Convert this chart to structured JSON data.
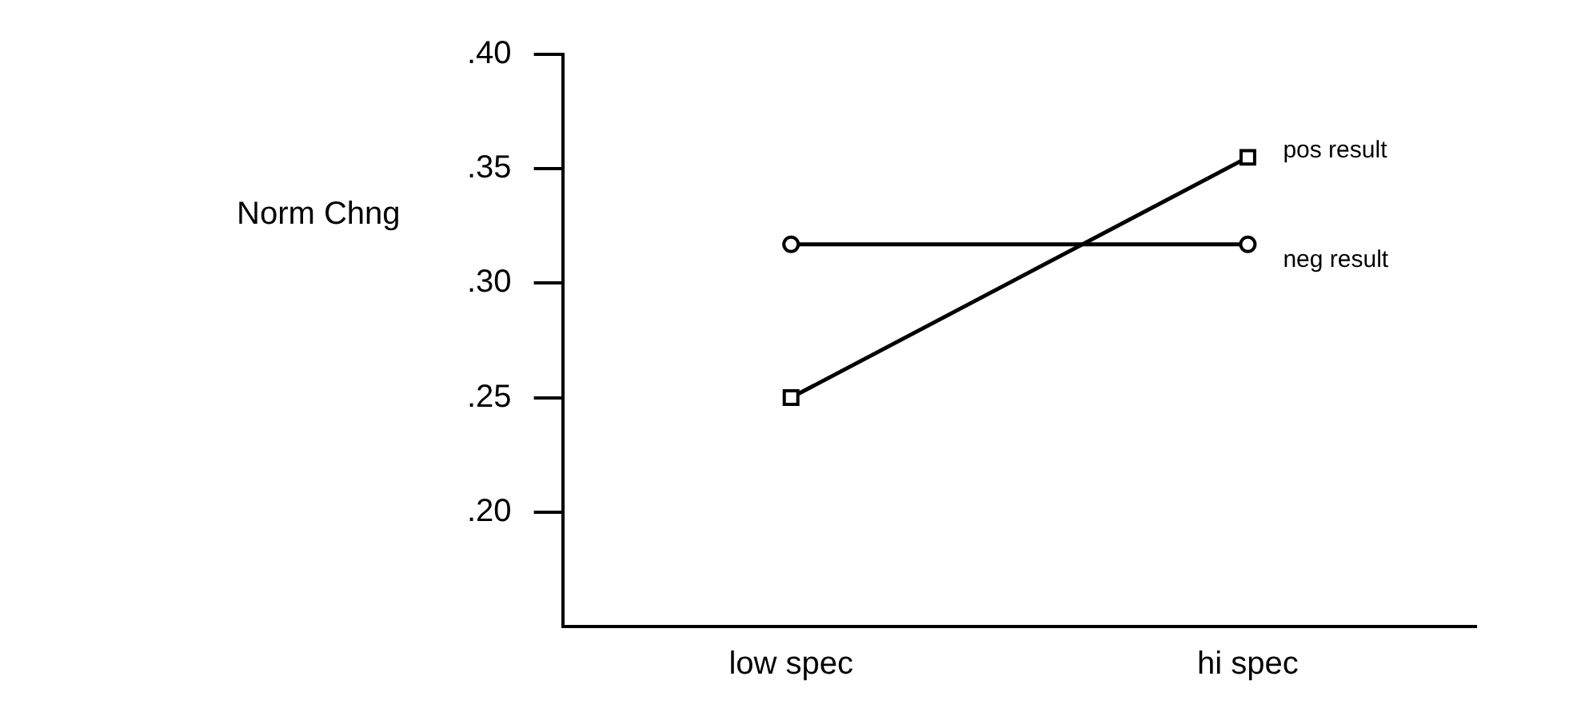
{
  "chart_data": {
    "type": "line",
    "ylabel": "Norm Chng",
    "categories": [
      "low spec",
      "hi spec"
    ],
    "series": [
      {
        "name": "pos result",
        "color": "#000000",
        "marker": "square",
        "values": [
          0.25,
          0.355
        ]
      },
      {
        "name": "neg result",
        "color": "#000000",
        "marker": "circle",
        "values": [
          0.317,
          0.317
        ]
      }
    ],
    "ylim": [
      0.15,
      0.4
    ],
    "yticks": [
      {
        "value": 0.2,
        "label": ".20"
      },
      {
        "value": 0.25,
        "label": ".25"
      },
      {
        "value": 0.3,
        "label": ".30"
      },
      {
        "value": 0.35,
        "label": ".35"
      },
      {
        "value": 0.4,
        "label": ".40"
      }
    ],
    "grid": false,
    "legend": false,
    "line_style": "solid"
  }
}
